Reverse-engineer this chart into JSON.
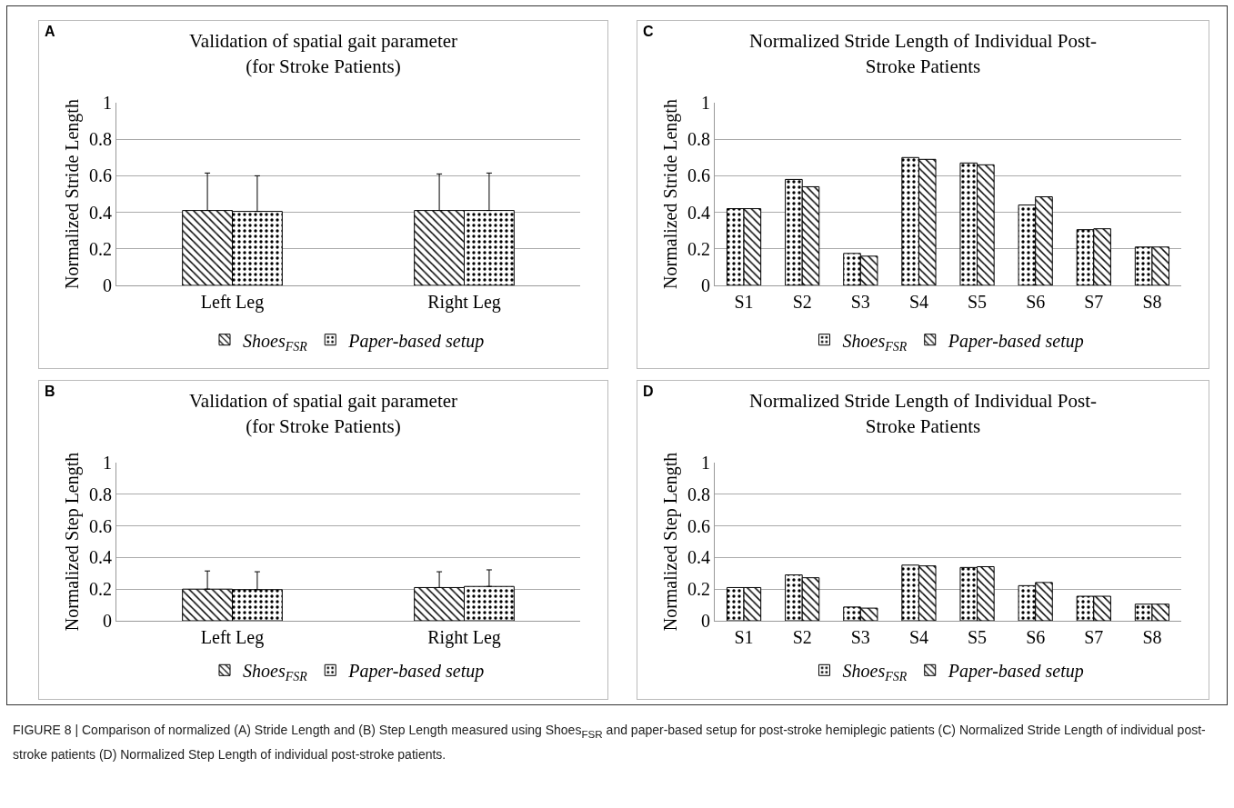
{
  "chart_data": [
    {
      "type": "bar",
      "title": "Validation of spatial gait parameter\n(for Stroke Patients)",
      "ylabel": "Normalized Stride Length",
      "categories": [
        "Left Leg",
        "Right Leg"
      ],
      "series": [
        {
          "name": "Shoes$_{FSR}$",
          "color": "#000000",
          "values": [
            0.41,
            0.41
          ],
          "errors": [
            [
              0.41,
              0.615
            ],
            [
              0.41,
              0.61
            ]
          ]
        },
        {
          "name": "Paper-based setup",
          "color": "#000000",
          "values": [
            0.405,
            0.41
          ],
          "errors": [
            [
              0.405,
              0.6
            ],
            [
              0.41,
              0.615
            ]
          ]
        }
      ],
      "ylim": [
        0,
        1
      ],
      "yticks": [
        0,
        0.2,
        0.4,
        0.6,
        0.8,
        1
      ],
      "grid": "y",
      "legend": "bottom",
      "annotations": [
        "A",
        "FIGURE 8 | Comparison of normalized (A) Stride Length and (B) Step Length measured using Shoes$_{FSR}$ and paper-based setup for post-stroke hemiplegic patients (C) Normalized Stride Length of individual post-stroke patients (D) Normalized Step Length of individual post-stroke patients."
      ]
    },
    {
      "type": "bar",
      "title": "Validation of spatial gait parameter\n(for Stroke Patients)",
      "ylabel": "Normalized Step Length",
      "categories": [
        "Left Leg",
        "Right Leg"
      ],
      "series": [
        {
          "name": "Shoes$_{FSR}$",
          "color": "#000000",
          "values": [
            0.2,
            0.21
          ],
          "errors": [
            [
              0.2,
              0.315
            ],
            [
              0.21,
              0.31
            ]
          ]
        },
        {
          "name": "Paper-based setup",
          "color": "#000000",
          "values": [
            0.197,
            0.217
          ],
          "errors": [
            [
              0.197,
              0.31
            ],
            [
              0.217,
              0.322
            ]
          ]
        }
      ],
      "ylim": [
        0,
        1
      ],
      "yticks": [
        0,
        0.2,
        0.4,
        0.6,
        0.8,
        1
      ],
      "grid": "y",
      "legend": "bottom",
      "annotations": [
        "B"
      ]
    },
    {
      "type": "bar",
      "title": "Normalized Stride Length of Individual Post-\nStroke Patients",
      "ylabel": "Normalized Stride Length",
      "categories": [
        "S1",
        "S2",
        "S3",
        "S4",
        "S5",
        "S6",
        "S7",
        "S8"
      ],
      "series": [
        {
          "name": "Shoes$_{FSR}$",
          "color": "#000000",
          "values": [
            0.42,
            0.58,
            0.175,
            0.7,
            0.67,
            0.44,
            0.305,
            0.21
          ]
        },
        {
          "name": "Paper-based setup",
          "color": "#000000",
          "values": [
            0.42,
            0.54,
            0.16,
            0.69,
            0.66,
            0.485,
            0.31,
            0.21
          ]
        }
      ],
      "ylim": [
        0,
        1
      ],
      "yticks": [
        0,
        0.2,
        0.4,
        0.6,
        0.8,
        1
      ],
      "grid": "y",
      "legend": "bottom",
      "annotations": [
        "C"
      ]
    },
    {
      "type": "bar",
      "title": "Normalized Stride Length of Individual Post-\nStroke Patients",
      "ylabel": "Normalized Step Length",
      "categories": [
        "S1",
        "S2",
        "S3",
        "S4",
        "S5",
        "S6",
        "S7",
        "S8"
      ],
      "series": [
        {
          "name": "Shoes$_{FSR}$",
          "color": "#000000",
          "values": [
            0.21,
            0.29,
            0.087,
            0.352,
            0.337,
            0.222,
            0.155,
            0.105
          ]
        },
        {
          "name": "Paper-based setup",
          "color": "#000000",
          "values": [
            0.21,
            0.272,
            0.08,
            0.347,
            0.342,
            0.242,
            0.155,
            0.105
          ]
        }
      ],
      "ylim": [
        0,
        1
      ],
      "yticks": [
        0,
        0.2,
        0.4,
        0.6,
        0.8,
        1
      ],
      "grid": "y",
      "legend": "bottom",
      "annotations": [
        "D"
      ]
    }
  ]
}
